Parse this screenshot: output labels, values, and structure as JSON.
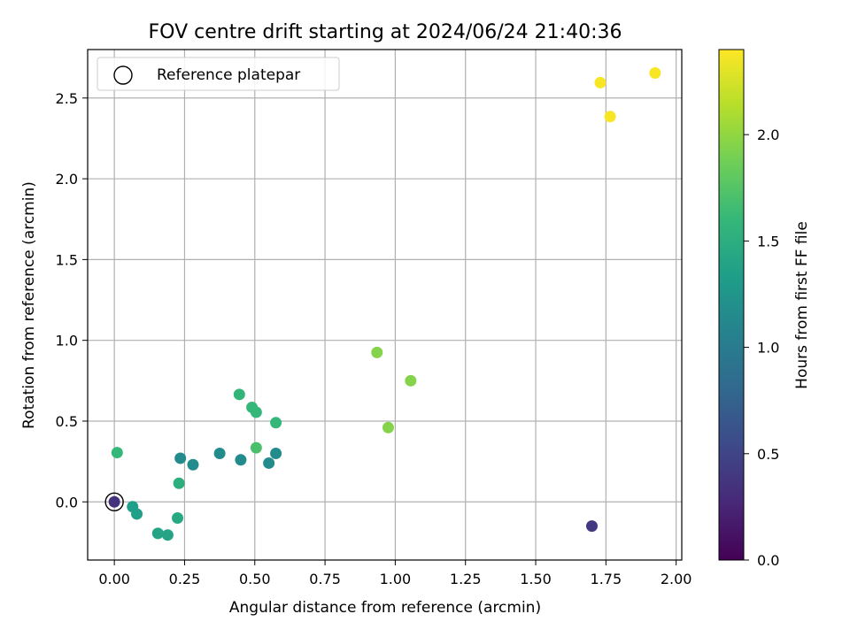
{
  "chart_data": {
    "type": "scatter",
    "title": "FOV centre drift starting at 2024/06/24 21:40:36",
    "xlabel": "Angular distance from reference (arcmin)",
    "ylabel": "Rotation from reference (arcmin)",
    "xlim": [
      -0.095,
      2.02
    ],
    "ylim": [
      -0.36,
      2.8
    ],
    "xticks": [
      0.0,
      0.25,
      0.5,
      0.75,
      1.0,
      1.25,
      1.5,
      1.75,
      2.0
    ],
    "xtick_labels": [
      "0.00",
      "0.25",
      "0.50",
      "0.75",
      "1.00",
      "1.25",
      "1.50",
      "1.75",
      "2.00"
    ],
    "yticks": [
      0.0,
      0.5,
      1.0,
      1.5,
      2.0,
      2.5
    ],
    "ytick_labels": [
      "0.0",
      "0.5",
      "1.0",
      "1.5",
      "2.0",
      "2.5"
    ],
    "grid": true,
    "legend": {
      "placement": "top-left",
      "entries": [
        "Reference platepar"
      ]
    },
    "reference_point": {
      "x": 0.0,
      "y": 0.0
    },
    "colormap": "viridis",
    "colorbar": {
      "label": "Hours from first FF file",
      "range": [
        0.0,
        2.4
      ],
      "ticks": [
        0.0,
        0.5,
        1.0,
        1.5,
        2.0
      ],
      "tick_labels": [
        "0.0",
        "0.5",
        "1.0",
        "1.5",
        "2.0"
      ],
      "stops": [
        "#440154",
        "#482878",
        "#3e4989",
        "#31688e",
        "#26828e",
        "#1f9e89",
        "#35b779",
        "#6ece58",
        "#b5de2b",
        "#fde725"
      ]
    },
    "points": [
      {
        "x": 0.0,
        "y": 0.0,
        "hours": 0.35
      },
      {
        "x": 1.7,
        "y": -0.15,
        "hours": 0.4
      },
      {
        "x": 0.235,
        "y": 0.27,
        "hours": 1.15
      },
      {
        "x": 0.28,
        "y": 0.23,
        "hours": 1.15
      },
      {
        "x": 0.375,
        "y": 0.3,
        "hours": 1.15
      },
      {
        "x": 0.45,
        "y": 0.26,
        "hours": 1.15
      },
      {
        "x": 0.55,
        "y": 0.24,
        "hours": 1.15
      },
      {
        "x": 0.575,
        "y": 0.3,
        "hours": 1.15
      },
      {
        "x": 0.065,
        "y": -0.03,
        "hours": 1.35
      },
      {
        "x": 0.08,
        "y": -0.075,
        "hours": 1.35
      },
      {
        "x": 0.155,
        "y": -0.195,
        "hours": 1.4
      },
      {
        "x": 0.19,
        "y": -0.205,
        "hours": 1.4
      },
      {
        "x": 0.225,
        "y": -0.1,
        "hours": 1.45
      },
      {
        "x": 0.23,
        "y": 0.115,
        "hours": 1.5
      },
      {
        "x": 0.01,
        "y": 0.305,
        "hours": 1.6
      },
      {
        "x": 0.445,
        "y": 0.665,
        "hours": 1.58
      },
      {
        "x": 0.49,
        "y": 0.585,
        "hours": 1.6
      },
      {
        "x": 0.505,
        "y": 0.555,
        "hours": 1.6
      },
      {
        "x": 0.575,
        "y": 0.49,
        "hours": 1.6
      },
      {
        "x": 0.505,
        "y": 0.335,
        "hours": 1.7
      },
      {
        "x": 0.935,
        "y": 0.925,
        "hours": 1.95
      },
      {
        "x": 1.055,
        "y": 0.75,
        "hours": 1.95
      },
      {
        "x": 0.975,
        "y": 0.46,
        "hours": 1.95
      },
      {
        "x": 1.73,
        "y": 2.595,
        "hours": 2.38
      },
      {
        "x": 1.765,
        "y": 2.385,
        "hours": 2.38
      },
      {
        "x": 1.925,
        "y": 2.655,
        "hours": 2.38
      }
    ]
  }
}
